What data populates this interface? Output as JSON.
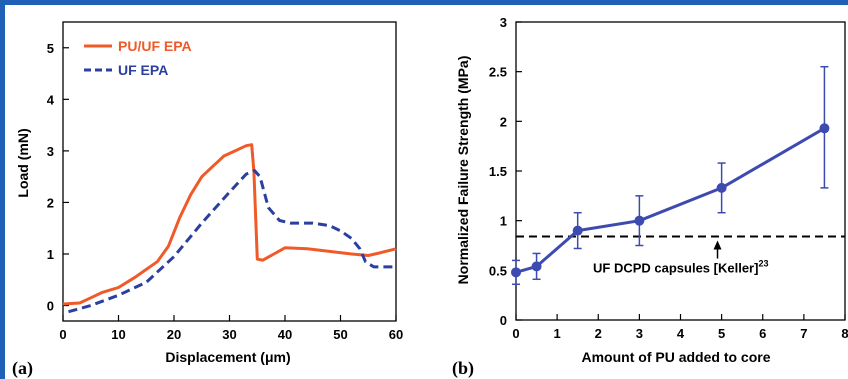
{
  "chart_data": [
    {
      "type": "line",
      "panel_label": "(a)",
      "title": "",
      "xlabel": "Displacement (μm)",
      "ylabel": "Load (mN)",
      "xlim": [
        0,
        60
      ],
      "ylim": [
        -0.3,
        5.5
      ],
      "xticks": [
        0,
        10,
        20,
        30,
        40,
        50,
        60
      ],
      "yticks": [
        0,
        1,
        2,
        3,
        4,
        5
      ],
      "legend_position": "top-left",
      "grid": false,
      "series": [
        {
          "name": "PU/UF EPA",
          "color": "#f05a28",
          "dash": "solid",
          "points": [
            [
              0,
              0.03
            ],
            [
              3,
              0.05
            ],
            [
              5,
              0.15
            ],
            [
              7,
              0.25
            ],
            [
              10,
              0.35
            ],
            [
              13,
              0.55
            ],
            [
              15,
              0.7
            ],
            [
              17,
              0.85
            ],
            [
              19,
              1.15
            ],
            [
              21,
              1.7
            ],
            [
              23,
              2.15
            ],
            [
              25,
              2.5
            ],
            [
              27,
              2.7
            ],
            [
              28,
              2.8
            ],
            [
              29,
              2.9
            ],
            [
              31,
              3.0
            ],
            [
              33,
              3.1
            ],
            [
              34,
              3.12
            ],
            [
              34.4,
              2.6
            ],
            [
              35,
              0.9
            ],
            [
              36,
              0.88
            ],
            [
              38,
              1.0
            ],
            [
              40,
              1.12
            ],
            [
              44,
              1.1
            ],
            [
              48,
              1.05
            ],
            [
              52,
              1.0
            ],
            [
              55,
              0.97
            ],
            [
              57,
              1.02
            ],
            [
              60,
              1.1
            ]
          ]
        },
        {
          "name": "UF EPA",
          "color": "#2b3fa0",
          "dash": "dashed",
          "points": [
            [
              1,
              -0.12
            ],
            [
              5,
              0.0
            ],
            [
              10,
              0.2
            ],
            [
              15,
              0.45
            ],
            [
              20,
              0.95
            ],
            [
              25,
              1.6
            ],
            [
              30,
              2.2
            ],
            [
              33,
              2.55
            ],
            [
              34.5,
              2.62
            ],
            [
              35.5,
              2.5
            ],
            [
              37,
              1.9
            ],
            [
              39,
              1.65
            ],
            [
              41,
              1.6
            ],
            [
              45,
              1.6
            ],
            [
              48,
              1.55
            ],
            [
              50,
              1.45
            ],
            [
              52,
              1.3
            ],
            [
              53.5,
              1.1
            ],
            [
              54.5,
              0.85
            ],
            [
              56,
              0.75
            ],
            [
              60,
              0.75
            ]
          ]
        }
      ]
    },
    {
      "type": "line",
      "panel_label": "(b)",
      "title": "",
      "xlabel": "Amount of PU added to core",
      "ylabel": "Normalized Failure Strength (MPa)",
      "xlim": [
        0,
        8
      ],
      "ylim": [
        0,
        3
      ],
      "xticks": [
        0,
        1,
        2,
        3,
        4,
        5,
        6,
        7,
        8
      ],
      "yticks": [
        "0",
        "0.5",
        "1",
        "1.5",
        "2",
        "2.5",
        "3"
      ],
      "grid": false,
      "series": [
        {
          "name": "",
          "color": "#3d4bb0",
          "x": [
            0,
            0.5,
            1.5,
            3,
            5,
            7.5
          ],
          "y": [
            0.48,
            0.54,
            0.9,
            1.0,
            1.33,
            1.93
          ],
          "err_low": [
            0.12,
            0.13,
            0.18,
            0.25,
            0.25,
            0.6
          ],
          "err_high": [
            0.12,
            0.13,
            0.18,
            0.25,
            0.25,
            0.62
          ]
        }
      ],
      "reference_line": {
        "y": 0.84,
        "style": "dashed",
        "color": "#000000"
      },
      "annotation": {
        "text": "UF DCPD capsules [Keller]",
        "superscript": "23",
        "arrow_x": 4.9
      }
    }
  ]
}
